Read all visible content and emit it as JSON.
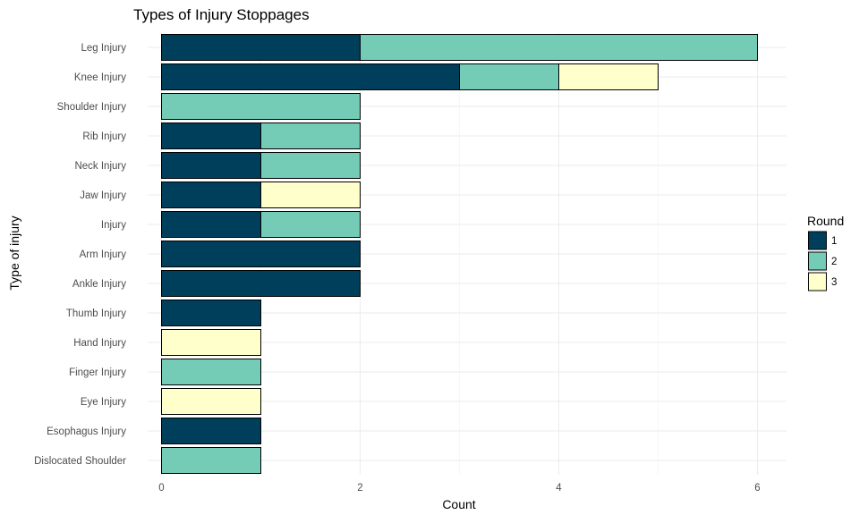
{
  "chart_data": {
    "type": "bar",
    "orientation": "horizontal",
    "stacked": true,
    "title": "Types of Injury Stoppages",
    "xlabel": "Count",
    "ylabel": "Type of injury",
    "xlim": [
      0,
      6.3
    ],
    "xticks": [
      0,
      2,
      4,
      6
    ],
    "categories": [
      "Leg Injury",
      "Knee Injury",
      "Shoulder Injury",
      "Rib Injury",
      "Neck Injury",
      "Jaw Injury",
      "Injury",
      "Arm Injury",
      "Ankle Injury",
      "Thumb Injury",
      "Hand Injury",
      "Finger Injury",
      "Eye Injury",
      "Esophagus Injury",
      "Dislocated Shoulder"
    ],
    "legend_title": "Round",
    "legend_position": "right",
    "grid": true,
    "series": [
      {
        "name": "1",
        "color": "#003f5c",
        "values": [
          2,
          3,
          0,
          1,
          1,
          1,
          1,
          2,
          2,
          1,
          0,
          0,
          0,
          1,
          0
        ]
      },
      {
        "name": "2",
        "color": "#74ccb6",
        "values": [
          4,
          1,
          2,
          1,
          1,
          0,
          1,
          0,
          0,
          0,
          0,
          1,
          0,
          0,
          1
        ]
      },
      {
        "name": "3",
        "color": "#ffffcc",
        "values": [
          0,
          1,
          0,
          0,
          0,
          1,
          0,
          0,
          0,
          0,
          1,
          0,
          1,
          0,
          0
        ]
      }
    ]
  }
}
